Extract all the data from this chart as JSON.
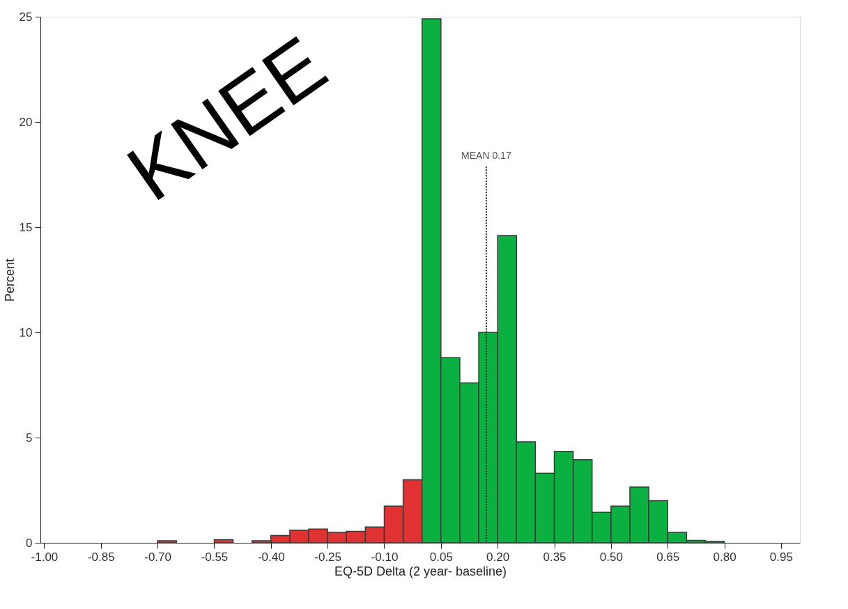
{
  "chart_data": {
    "type": "histogram",
    "xlabel": "EQ-5D Delta (2 year- baseline)",
    "ylabel": "Percent",
    "bins": [
      -1.0,
      -0.95,
      -0.9,
      -0.85,
      -0.8,
      -0.75,
      -0.7,
      -0.65,
      -0.6,
      -0.55,
      -0.5,
      -0.45,
      -0.4,
      -0.35,
      -0.3,
      -0.25,
      -0.2,
      -0.15,
      -0.1,
      -0.05,
      0.0,
      0.05,
      0.1,
      0.15,
      0.2,
      0.25,
      0.3,
      0.35,
      0.4,
      0.45,
      0.5,
      0.55,
      0.6,
      0.65,
      0.7,
      0.75,
      0.8,
      0.85,
      0.9,
      0.95,
      1.0
    ],
    "values": [
      0,
      0,
      0,
      0,
      0,
      0,
      0.1,
      0,
      0,
      0.15,
      0,
      0.1,
      0.35,
      0.6,
      0.65,
      0.5,
      0.55,
      0.75,
      1.75,
      3.0,
      24.9,
      8.8,
      7.6,
      10.0,
      14.6,
      4.8,
      3.3,
      4.35,
      3.95,
      1.45,
      1.75,
      2.65,
      2.0,
      0.5,
      0.12,
      0.07,
      0,
      0,
      0,
      0
    ],
    "colors": [
      "#e03232",
      "#e03232",
      "#e03232",
      "#e03232",
      "#e03232",
      "#e03232",
      "#e03232",
      "#e03232",
      "#e03232",
      "#e03232",
      "#e03232",
      "#e03232",
      "#e03232",
      "#e03232",
      "#e03232",
      "#e03232",
      "#e03232",
      "#e03232",
      "#e03232",
      "#e03232",
      "#0ab040",
      "#0ab040",
      "#0ab040",
      "#0ab040",
      "#0ab040",
      "#0ab040",
      "#0ab040",
      "#0ab040",
      "#0ab040",
      "#0ab040",
      "#0ab040",
      "#0ab040",
      "#0ab040",
      "#0ab040",
      "#0ab040",
      "#0ab040",
      "#0ab040",
      "#0ab040",
      "#0ab040",
      "#0ab040"
    ],
    "xlim": [
      -1.01,
      1.0
    ],
    "ylim": [
      0,
      25
    ],
    "xticks": [
      {
        "value": -1.0,
        "label": "-1.00"
      },
      {
        "value": -0.85,
        "label": "-0.85"
      },
      {
        "value": -0.7,
        "label": "-0.70"
      },
      {
        "value": -0.55,
        "label": "-0.55"
      },
      {
        "value": -0.4,
        "label": "-0.40"
      },
      {
        "value": -0.25,
        "label": "-0.25"
      },
      {
        "value": -0.1,
        "label": "-0.10"
      },
      {
        "value": 0.05,
        "label": "0.05"
      },
      {
        "value": 0.2,
        "label": "0.20"
      },
      {
        "value": 0.35,
        "label": "0.35"
      },
      {
        "value": 0.5,
        "label": "0.50"
      },
      {
        "value": 0.65,
        "label": "0.65"
      },
      {
        "value": 0.8,
        "label": "0.80"
      },
      {
        "value": 0.95,
        "label": "0.95"
      }
    ],
    "yticks": [
      0,
      5,
      10,
      15,
      20,
      25
    ],
    "ref_lines": [
      {
        "axis": "x",
        "value": 0.17,
        "label": "MEAN 0.17",
        "line_style": "dotted",
        "color": "#222222"
      }
    ],
    "annotations": [
      "KNEE"
    ],
    "grid": false
  }
}
